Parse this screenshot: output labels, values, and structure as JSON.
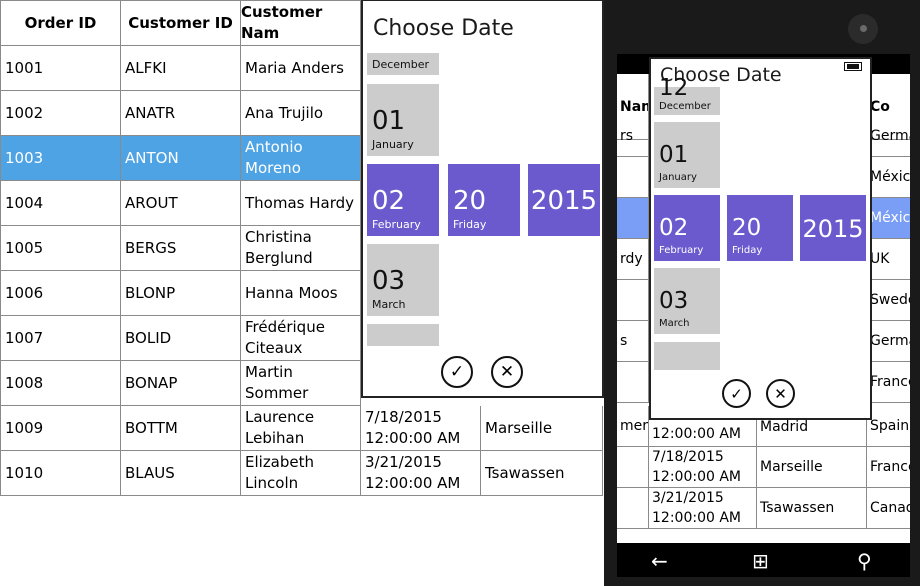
{
  "grid": {
    "headers": [
      "Order ID",
      "Customer ID",
      "Customer Nam"
    ],
    "rows": [
      {
        "order_id": "1001",
        "customer_id": "ALFKI",
        "name": "Maria Anders"
      },
      {
        "order_id": "1002",
        "customer_id": "ANATR",
        "name": "Ana Trujilo"
      },
      {
        "order_id": "1003",
        "customer_id": "ANTON",
        "name": "Antonio\nMoreno"
      },
      {
        "order_id": "1004",
        "customer_id": "AROUT",
        "name": "Thomas Hardy"
      },
      {
        "order_id": "1005",
        "customer_id": "BERGS",
        "name": "Christina\nBerglund"
      },
      {
        "order_id": "1006",
        "customer_id": "BLONP",
        "name": "Hanna Moos"
      },
      {
        "order_id": "1007",
        "customer_id": "BOLID",
        "name": "Frédérique\nCiteaux"
      },
      {
        "order_id": "1008",
        "customer_id": "BONAP",
        "name": "Martin Sommer"
      },
      {
        "order_id": "1009",
        "customer_id": "BOTTM",
        "name": "Laurence\nLebihan",
        "date": "7/18/2015\n12:00:00 AM",
        "city": "Marseille"
      },
      {
        "order_id": "1010",
        "customer_id": "BLAUS",
        "name": "Elizabeth\nLincoln",
        "date": "3/21/2015\n12:00:00 AM",
        "city": "Tsawassen"
      }
    ]
  },
  "picker": {
    "title": "Choose Date",
    "prev_month_label": "December",
    "prev_month_num": "12",
    "months": [
      {
        "num": "01",
        "label": "January"
      },
      {
        "num": "02",
        "label": "February"
      },
      {
        "num": "03",
        "label": "March"
      },
      {
        "num": "04",
        "label": ""
      }
    ],
    "day": {
      "num": "20",
      "label": "Friday"
    },
    "year": "2015",
    "ok_icon": "✓",
    "cancel_icon": "✕",
    "accent_color": "#6a5acd"
  },
  "phone": {
    "header_partial_name": "Nam",
    "header_partial_country": "Co",
    "rows": [
      {
        "name": "rs",
        "country": "Germa"
      },
      {
        "name": "",
        "country": "Méxic"
      },
      {
        "name": "",
        "country": "Méxic"
      },
      {
        "name": "rdy",
        "country": "UK"
      },
      {
        "name": "",
        "country": "Swede"
      },
      {
        "name": "s",
        "country": "Germa"
      },
      {
        "name": "",
        "country": "France"
      },
      {
        "name": "mer",
        "date": "12:00:00 AM",
        "city": "Madrid",
        "country": "Spain"
      },
      {
        "name": "",
        "date": "7/18/2015\n12:00:00 AM",
        "city": "Marseille",
        "country": "France"
      },
      {
        "name": "",
        "date": "3/21/2015\n12:00:00 AM",
        "city": "Tsawassen",
        "country": "Canad"
      }
    ],
    "nav": {
      "back_icon": "←",
      "start_icon": "⊞",
      "search_icon": "⚲"
    }
  }
}
